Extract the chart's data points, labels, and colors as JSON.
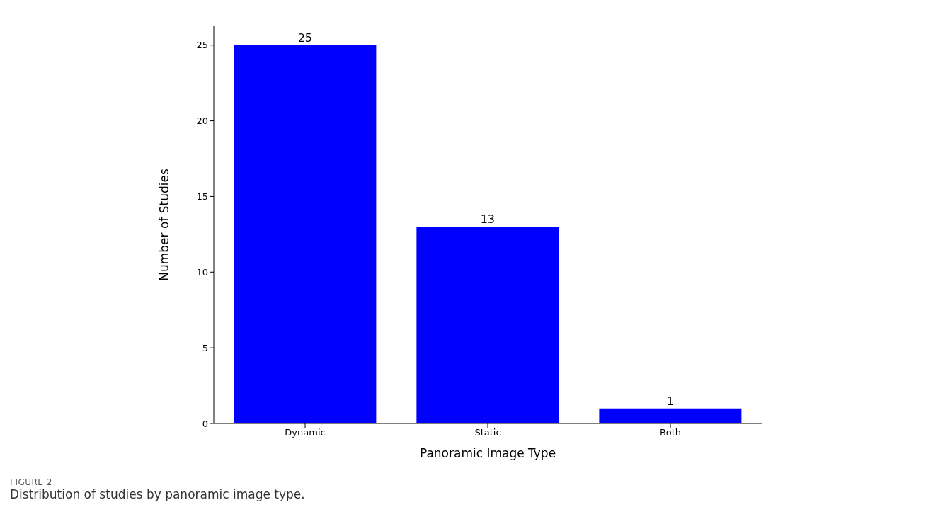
{
  "chart_data": {
    "type": "bar",
    "xlabel": "Panoramic Image Type",
    "ylabel": "Number of Studies",
    "categories": [
      "Dynamic",
      "Static",
      "Both"
    ],
    "values": [
      25,
      13,
      1
    ],
    "color": "#0000ff",
    "ylim": [
      0,
      26.25
    ],
    "yticks": [
      0,
      5,
      10,
      15,
      20,
      25
    ],
    "grid": false,
    "data_labels": true,
    "annotations": [
      "FIGURE 2",
      "Distribution of studies by panoramic image type."
    ]
  }
}
